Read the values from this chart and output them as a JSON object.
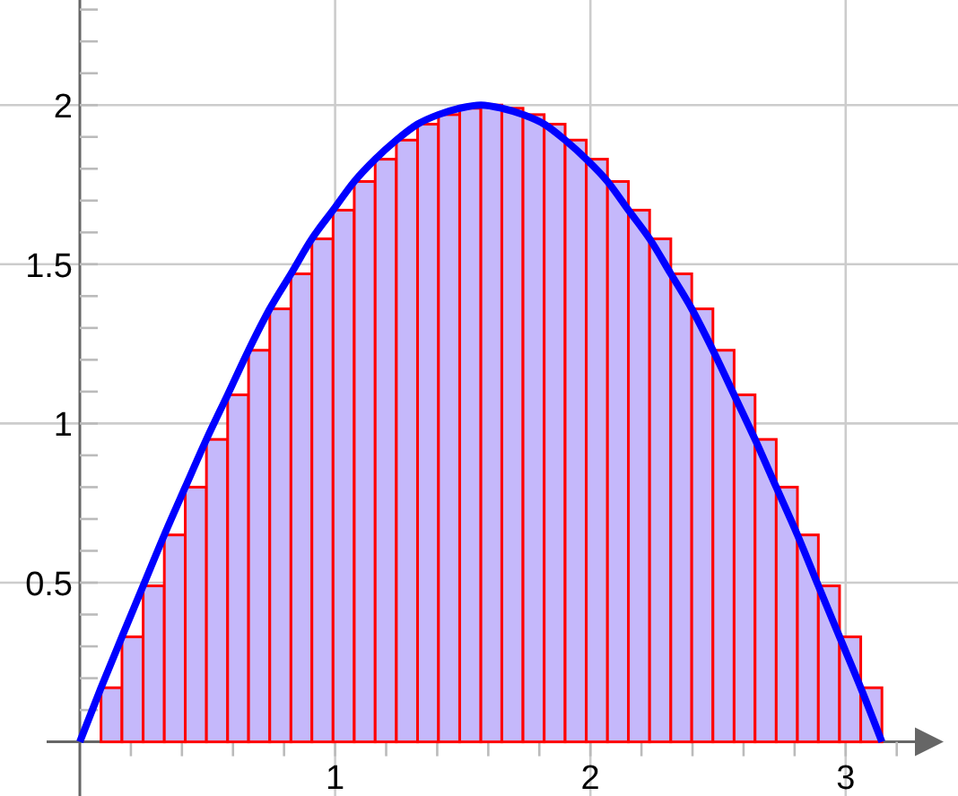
{
  "chart_data": {
    "type": "histogram",
    "series": [
      {
        "color": "#c5b8fb",
        "bins": [
          0,
          0.083,
          0.165,
          0.248,
          0.331,
          0.413,
          0.496,
          0.579,
          0.661,
          0.744,
          0.827,
          0.909,
          0.992,
          1.075,
          1.157,
          1.24,
          1.323,
          1.405,
          1.488,
          1.571,
          1.653,
          1.736,
          1.819,
          1.901,
          1.984,
          2.067,
          2.149,
          2.232,
          2.315,
          2.397,
          2.48,
          2.563,
          2.645,
          2.728,
          2.811,
          2.893,
          2.976,
          3.059,
          3.142
        ],
        "values": [
          0,
          0.17,
          0.33,
          0.49,
          0.65,
          0.8,
          0.95,
          1.09,
          1.23,
          1.36,
          1.47,
          1.58,
          1.67,
          1.76,
          1.83,
          1.89,
          1.94,
          1.97,
          1.99,
          2,
          1.99,
          1.97,
          1.94,
          1.89,
          1.83,
          1.76,
          1.67,
          1.58,
          1.47,
          1.36,
          1.23,
          1.09,
          0.95,
          0.8,
          0.65,
          0.49,
          0.33,
          0.17
        ]
      },
      {
        "type": "line",
        "color": "#0000ff",
        "x": [
          0,
          0.083,
          0.165,
          0.248,
          0.331,
          0.413,
          0.496,
          0.579,
          0.661,
          0.744,
          0.827,
          0.909,
          0.992,
          1.075,
          1.157,
          1.24,
          1.323,
          1.405,
          1.488,
          1.571,
          1.653,
          1.736,
          1.819,
          1.901,
          1.984,
          2.067,
          2.149,
          2.232,
          2.315,
          2.397,
          2.48,
          2.563,
          2.645,
          2.728,
          2.811,
          2.893,
          2.976,
          3.059,
          3.142
        ],
        "values": [
          0,
          0.17,
          0.33,
          0.49,
          0.65,
          0.8,
          0.95,
          1.09,
          1.23,
          1.36,
          1.47,
          1.58,
          1.67,
          1.76,
          1.83,
          1.89,
          1.94,
          1.97,
          1.99,
          2,
          1.99,
          1.97,
          1.94,
          1.89,
          1.83,
          1.76,
          1.67,
          1.58,
          1.47,
          1.36,
          1.23,
          1.09,
          0.95,
          0.8,
          0.65,
          0.49,
          0.33,
          0.17,
          0
        ]
      }
    ],
    "xlim": [
      -0.13,
      3.44
    ],
    "ylim": [
      -0.17,
      2.33
    ],
    "xticks": [
      {
        "value": 0.2,
        "label": null
      },
      {
        "value": 0.4,
        "label": null
      },
      {
        "value": 0.6,
        "label": null
      },
      {
        "value": 0.8,
        "label": null
      },
      1,
      {
        "value": 1.2,
        "label": null
      },
      {
        "value": 1.4,
        "label": null
      },
      {
        "value": 1.6,
        "label": null
      },
      {
        "value": 1.8,
        "label": null
      },
      2,
      {
        "value": 2.2,
        "label": null
      },
      {
        "value": 2.4,
        "label": null
      },
      {
        "value": 2.6,
        "label": null
      },
      {
        "value": 2.8,
        "label": null
      },
      3,
      {
        "value": 3.2,
        "label": null
      }
    ],
    "yticks": [
      {
        "value": 0.1,
        "label": null
      },
      {
        "value": 0.2,
        "label": null
      },
      {
        "value": 0.3,
        "label": null
      },
      {
        "value": 0.4,
        "label": null
      },
      0.5,
      {
        "value": 0.6,
        "label": null
      },
      {
        "value": 0.7,
        "label": null
      },
      {
        "value": 0.8,
        "label": null
      },
      {
        "value": 0.9,
        "label": null
      },
      1,
      {
        "value": 1.1,
        "label": null
      },
      {
        "value": 1.2,
        "label": null
      },
      {
        "value": 1.3,
        "label": null
      },
      {
        "value": 1.4,
        "label": null
      },
      1.5,
      {
        "value": 1.6,
        "label": null
      },
      {
        "value": 1.7,
        "label": null
      },
      {
        "value": 1.8,
        "label": null
      },
      {
        "value": 1.9,
        "label": null
      },
      2,
      {
        "value": 2.1,
        "label": null
      },
      {
        "value": 2.2,
        "label": null
      },
      {
        "value": 2.3,
        "label": null
      }
    ],
    "grid": true
  }
}
